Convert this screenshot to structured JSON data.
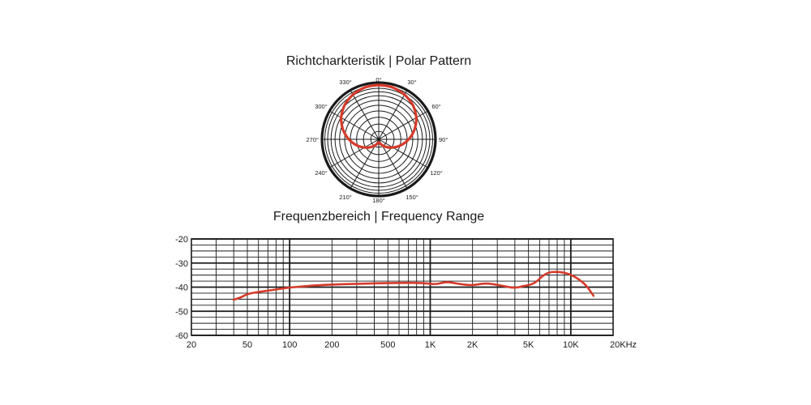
{
  "polar_title": "Richtcharkteristik | Polar Pattern",
  "freq_title": "Frequenzbereich | Frequency Range",
  "colors": {
    "curve": "#d63a2a",
    "grid": "#1a1a1a",
    "text": "#1a1a1a"
  },
  "chart_data": [
    {
      "type": "polar",
      "title": "Richtcharkteristik | Polar Pattern",
      "angle_labels": [
        "0°",
        "30°",
        "60°",
        "90°",
        "120°",
        "150°",
        "180°",
        "210°",
        "240°",
        "270°",
        "300°",
        "330°"
      ],
      "angles_deg": [
        0,
        30,
        60,
        90,
        120,
        150,
        180,
        210,
        240,
        270,
        300,
        330
      ],
      "pattern": "cardioid",
      "series": [
        {
          "theta": [
            0,
            15,
            30,
            45,
            60,
            75,
            90,
            105,
            120,
            135,
            150,
            165,
            180,
            195,
            210,
            225,
            240,
            255,
            270,
            285,
            300,
            315,
            330,
            345,
            360
          ],
          "r": [
            1.0,
            0.99,
            0.95,
            0.89,
            0.8,
            0.68,
            0.55,
            0.42,
            0.3,
            0.2,
            0.12,
            0.07,
            0.06,
            0.07,
            0.12,
            0.2,
            0.3,
            0.42,
            0.55,
            0.68,
            0.8,
            0.89,
            0.95,
            0.99,
            1.0
          ]
        }
      ]
    },
    {
      "type": "line",
      "title": "Frequenzbereich | Frequency Range",
      "xscale": "log",
      "xlim": [
        20,
        20000
      ],
      "ylim": [
        -60,
        -20
      ],
      "x_tick_values": [
        20,
        50,
        100,
        200,
        500,
        1000,
        2000,
        5000,
        10000,
        20000
      ],
      "x_tick_labels": [
        "20",
        "50",
        "100",
        "200",
        "500",
        "1K",
        "2K",
        "5K",
        "10K",
        "20KHz"
      ],
      "y_tick_values": [
        -20,
        -30,
        -40,
        -50,
        -60
      ],
      "y_tick_labels": [
        "-20",
        "-30",
        "-40",
        "-50",
        "-60"
      ],
      "series": [
        {
          "x": [
            40,
            45,
            50,
            60,
            80,
            100,
            150,
            200,
            300,
            500,
            700,
            900,
            1100,
            1300,
            1600,
            2000,
            2400,
            2800,
            3500,
            4000,
            4700,
            5200,
            5700,
            6300,
            7000,
            8000,
            9000,
            10000,
            11500,
            13000,
            14500
          ],
          "y": [
            -45.2,
            -44.3,
            -42.8,
            -42.0,
            -41.0,
            -40.1,
            -39.3,
            -38.9,
            -38.6,
            -38.3,
            -38.2,
            -38.3,
            -38.9,
            -37.7,
            -38.7,
            -39.3,
            -38.4,
            -38.7,
            -39.8,
            -40.4,
            -39.4,
            -39.0,
            -37.8,
            -35.3,
            -33.8,
            -33.6,
            -34.0,
            -34.8,
            -36.8,
            -39.5,
            -43.6
          ]
        }
      ]
    }
  ]
}
